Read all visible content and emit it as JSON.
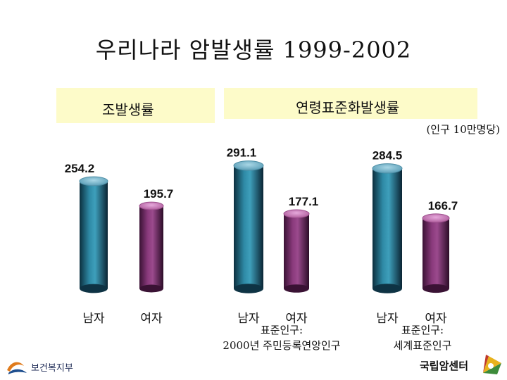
{
  "title": "우리나라 암발생률 1999-2002",
  "groups": {
    "crude_label": "조발생률",
    "standardized_label": "연령표준화발생률"
  },
  "unit": "(인구 10만명당)",
  "notes": {
    "korean": [
      "표준인구:",
      "2000년 주민등록연앙인구"
    ],
    "world": [
      "표준인구:",
      "세계표준인구"
    ]
  },
  "logos": {
    "left": "보건복지부",
    "right": "국립암센터"
  },
  "colors": {
    "male": "#1e5f78",
    "female": "#6a2a5e",
    "band": "#fdfbc9"
  },
  "chart_data": {
    "type": "bar",
    "title": "우리나라 암발생률 1999-2002",
    "unit": "(인구 10만명당)",
    "ylim": [
      0,
      320
    ],
    "categories": [
      "남자",
      "여자",
      "남자",
      "여자",
      "남자",
      "여자"
    ],
    "values": [
      254.2,
      195.7,
      291.1,
      177.1,
      284.5,
      166.7
    ],
    "value_labels": [
      "254.2",
      "195.7",
      "291.1",
      "177.1",
      "284.5",
      "166.7"
    ],
    "sex": [
      "male",
      "female",
      "male",
      "female",
      "male",
      "female"
    ],
    "grid": false
  }
}
